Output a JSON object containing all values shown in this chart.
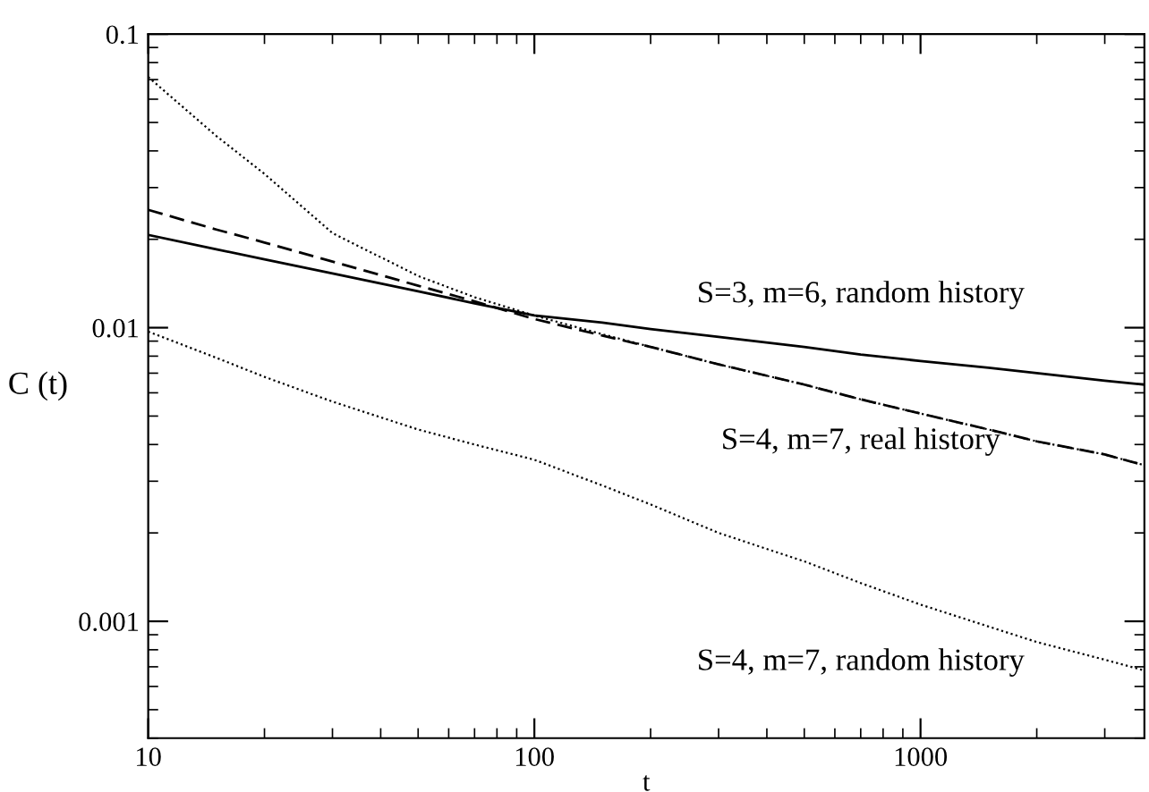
{
  "chart_data": {
    "type": "line",
    "xlabel": "t",
    "ylabel": "C (t)",
    "log": "xy",
    "grid": false,
    "legend": false,
    "xlim": [
      10,
      3800
    ],
    "xticks": [
      10,
      100,
      1000
    ],
    "ylim": [
      0.0004,
      0.1
    ],
    "yticks": [
      0.001,
      0.01,
      0.1
    ],
    "x": [
      10,
      15,
      20,
      30,
      50,
      70,
      100,
      150,
      200,
      300,
      500,
      700,
      1000,
      1500,
      2000,
      3000,
      3800
    ],
    "series": [
      {
        "name": "S=3, m=6, random history",
        "color": "#000000",
        "line_style": "solid",
        "values": [
          0.0207,
          0.0185,
          0.0171,
          0.0153,
          0.0133,
          0.0121,
          0.011,
          0.0104,
          0.0099,
          0.0093,
          0.0086,
          0.0081,
          0.0077,
          0.0073,
          0.007,
          0.0066,
          0.0064
        ]
      },
      {
        "name": "S=4, m=7, real history",
        "color": "#000000",
        "line_style": "dashed",
        "values": [
          0.0252,
          0.0216,
          0.0195,
          0.0168,
          0.0139,
          0.0123,
          0.0107,
          0.0094,
          0.0086,
          0.0075,
          0.0064,
          0.0057,
          0.0051,
          0.0045,
          0.0041,
          0.0037,
          0.0034
        ]
      },
      {
        "color": "#000000",
        "line_style": "dotted",
        "values": [
          0.0714,
          0.045,
          0.0334,
          0.021,
          0.015,
          0.0127,
          0.011,
          0.0095,
          0.0086,
          0.0075,
          0.0064,
          0.0057,
          0.0051,
          0.0045,
          0.0041,
          0.0037,
          0.0034
        ]
      },
      {
        "name": "S=4, m=7, random history",
        "color": "#000000",
        "line_style": "dotted",
        "values": [
          0.0097,
          0.0079,
          0.0068,
          0.0056,
          0.0045,
          0.004,
          0.00355,
          0.0029,
          0.0025,
          0.002,
          0.0016,
          0.00135,
          0.00114,
          0.00096,
          0.00085,
          0.00074,
          0.00068
        ]
      }
    ]
  }
}
